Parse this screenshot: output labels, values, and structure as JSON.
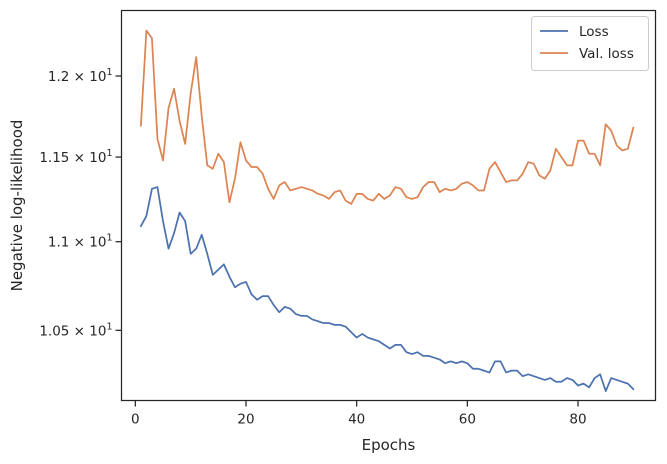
{
  "chart_data": {
    "type": "line",
    "xlabel": "Epochs",
    "ylabel": "Negative log-likelihood",
    "xlim": [
      -2.5,
      94
    ],
    "ylim": [
      10.12,
      12.42
    ],
    "yscale": "log",
    "x_ticks": [
      0,
      20,
      40,
      60,
      80
    ],
    "y_ticks": [
      {
        "value": 10.5,
        "mant": "1.05",
        "exp": "1"
      },
      {
        "value": 11.0,
        "mant": "1.1",
        "exp": "1"
      },
      {
        "value": 11.5,
        "mant": "1.15",
        "exp": "1"
      },
      {
        "value": 12.0,
        "mant": "1.2",
        "exp": "1"
      }
    ],
    "grid": false,
    "legend_position": "top-right",
    "series": [
      {
        "name": "Loss",
        "color": "#4c72b0",
        "x": [
          1,
          2,
          3,
          4,
          5,
          6,
          7,
          8,
          9,
          10,
          11,
          12,
          13,
          14,
          15,
          16,
          17,
          18,
          19,
          20,
          21,
          22,
          23,
          24,
          25,
          26,
          27,
          28,
          29,
          30,
          31,
          32,
          33,
          34,
          35,
          36,
          37,
          38,
          39,
          40,
          41,
          42,
          43,
          44,
          45,
          46,
          47,
          48,
          49,
          50,
          51,
          52,
          53,
          54,
          55,
          56,
          57,
          58,
          59,
          60,
          61,
          62,
          63,
          64,
          65,
          66,
          67,
          68,
          69,
          70,
          71,
          72,
          73,
          74,
          75,
          76,
          77,
          78,
          79,
          80,
          81,
          82,
          83,
          84,
          85,
          86,
          87,
          88,
          89,
          90
        ],
        "values": [
          11.09,
          11.15,
          11.31,
          11.32,
          11.12,
          10.96,
          11.05,
          11.17,
          11.12,
          10.93,
          10.96,
          11.04,
          10.93,
          10.81,
          10.84,
          10.87,
          10.8,
          10.74,
          10.76,
          10.77,
          10.7,
          10.67,
          10.69,
          10.69,
          10.64,
          10.6,
          10.63,
          10.62,
          10.59,
          10.58,
          10.58,
          10.56,
          10.55,
          10.54,
          10.54,
          10.53,
          10.53,
          10.52,
          10.49,
          10.46,
          10.48,
          10.46,
          10.45,
          10.44,
          10.42,
          10.4,
          10.42,
          10.42,
          10.38,
          10.37,
          10.38,
          10.36,
          10.36,
          10.35,
          10.34,
          10.32,
          10.33,
          10.32,
          10.33,
          10.32,
          10.29,
          10.29,
          10.28,
          10.27,
          10.33,
          10.33,
          10.27,
          10.28,
          10.28,
          10.25,
          10.26,
          10.25,
          10.24,
          10.23,
          10.24,
          10.22,
          10.22,
          10.24,
          10.23,
          10.2,
          10.21,
          10.19,
          10.24,
          10.26,
          10.17,
          10.24,
          10.23,
          10.22,
          10.21,
          10.18
        ]
      },
      {
        "name": "Val. loss",
        "color": "#dd8452",
        "x": [
          1,
          2,
          3,
          4,
          5,
          6,
          7,
          8,
          9,
          10,
          11,
          12,
          13,
          14,
          15,
          16,
          17,
          18,
          19,
          20,
          21,
          22,
          23,
          24,
          25,
          26,
          27,
          28,
          29,
          30,
          31,
          32,
          33,
          34,
          35,
          36,
          37,
          38,
          39,
          40,
          41,
          42,
          43,
          44,
          45,
          46,
          47,
          48,
          49,
          50,
          51,
          52,
          53,
          54,
          55,
          56,
          57,
          58,
          59,
          60,
          61,
          62,
          63,
          64,
          65,
          66,
          67,
          68,
          69,
          70,
          71,
          72,
          73,
          74,
          75,
          76,
          77,
          78,
          79,
          80,
          81,
          82,
          83,
          84,
          85,
          86,
          87,
          88,
          89,
          90
        ],
        "values": [
          11.69,
          12.29,
          12.24,
          11.61,
          11.48,
          11.8,
          11.92,
          11.72,
          11.58,
          11.89,
          12.12,
          11.75,
          11.45,
          11.43,
          11.52,
          11.47,
          11.23,
          11.37,
          11.59,
          11.48,
          11.44,
          11.44,
          11.4,
          11.31,
          11.25,
          11.33,
          11.35,
          11.3,
          11.31,
          11.32,
          11.31,
          11.3,
          11.28,
          11.27,
          11.25,
          11.29,
          11.3,
          11.24,
          11.22,
          11.28,
          11.28,
          11.25,
          11.24,
          11.28,
          11.25,
          11.27,
          11.32,
          11.31,
          11.26,
          11.25,
          11.26,
          11.32,
          11.35,
          11.35,
          11.29,
          11.31,
          11.3,
          11.31,
          11.34,
          11.35,
          11.33,
          11.3,
          11.3,
          11.43,
          11.47,
          11.41,
          11.35,
          11.36,
          11.36,
          11.4,
          11.47,
          11.46,
          11.39,
          11.37,
          11.42,
          11.55,
          11.5,
          11.45,
          11.45,
          11.6,
          11.6,
          11.52,
          11.52,
          11.45,
          11.7,
          11.66,
          11.57,
          11.54,
          11.55,
          11.68
        ]
      }
    ]
  }
}
